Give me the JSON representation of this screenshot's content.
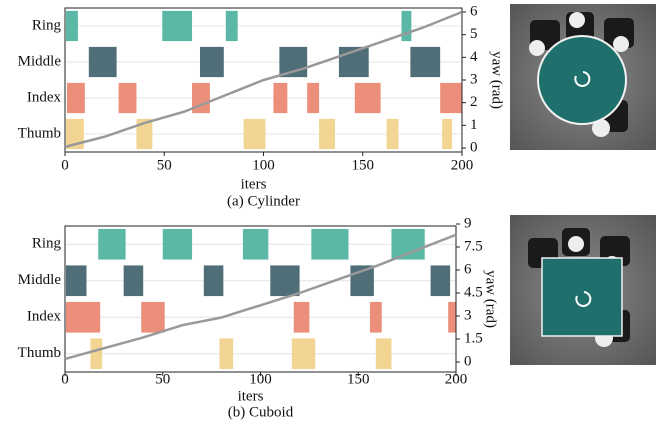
{
  "chart_data": [
    {
      "type": "gait",
      "caption": "(a)  Cylinder",
      "xlabel": "iters",
      "y2label": "yaw (rad)",
      "xlim": [
        0,
        200
      ],
      "xticks": [
        0,
        50,
        100,
        150,
        200
      ],
      "y2lim": [
        0,
        6
      ],
      "y2ticks": [
        0,
        1,
        2,
        3,
        4,
        5,
        6
      ],
      "series": [
        {
          "name": "Ring",
          "color": "#5cb8a6",
          "intervals": [
            [
              0.5,
              6.5
            ],
            [
              49,
              64
            ],
            [
              81,
              87
            ],
            [
              169.5,
              174.5
            ]
          ]
        },
        {
          "name": "Middle",
          "color": "#4f6e78",
          "intervals": [
            [
              12,
              26
            ],
            [
              68,
              80
            ],
            [
              108,
              122
            ],
            [
              138,
              153
            ],
            [
              174,
              189
            ]
          ]
        },
        {
          "name": "Index",
          "color": "#ec8f7a",
          "intervals": [
            [
              1,
              10
            ],
            [
              27,
              36
            ],
            [
              64,
              73
            ],
            [
              105,
              112
            ],
            [
              122,
              128
            ],
            [
              146,
              159
            ],
            [
              189,
              200
            ]
          ]
        },
        {
          "name": "Thumb",
          "color": "#f2d493",
          "intervals": [
            [
              0.5,
              9.5
            ],
            [
              36,
              44
            ],
            [
              90,
              101
            ],
            [
              128,
              136
            ],
            [
              162,
              168
            ],
            [
              190,
              195
            ]
          ]
        }
      ],
      "yaw": {
        "axis": "y2",
        "color": "#999999",
        "x": [
          0,
          20,
          40,
          60,
          80,
          100,
          120,
          140,
          160,
          180,
          200
        ],
        "values": [
          0.05,
          0.5,
          1.1,
          1.6,
          2.3,
          3.0,
          3.5,
          4.1,
          4.7,
          5.3,
          6.0
        ]
      }
    },
    {
      "type": "gait",
      "caption": "(b)  Cuboid",
      "xlabel": "iters",
      "y2label": "yaw (rad)",
      "xlim": [
        0,
        200
      ],
      "xticks": [
        0,
        50,
        100,
        150,
        200
      ],
      "y2lim": [
        0,
        9
      ],
      "y2ticks": [
        0,
        1.5,
        3,
        4.5,
        6,
        7.5,
        9
      ],
      "series": [
        {
          "name": "Ring",
          "color": "#5cb8a6",
          "intervals": [
            [
              17,
              31
            ],
            [
              50,
              65
            ],
            [
              91,
              104
            ],
            [
              126,
              145
            ],
            [
              167,
              184
            ]
          ]
        },
        {
          "name": "Middle",
          "color": "#4f6e78",
          "intervals": [
            [
              0.5,
              11
            ],
            [
              30,
              40
            ],
            [
              71,
              81
            ],
            [
              105,
              120
            ],
            [
              146,
              158
            ],
            [
              187,
              197
            ]
          ]
        },
        {
          "name": "Index",
          "color": "#ec8f7a",
          "intervals": [
            [
              0.5,
              18
            ],
            [
              39,
              51
            ],
            [
              117,
              125
            ],
            [
              156,
              162
            ],
            [
              196,
              200
            ]
          ]
        },
        {
          "name": "Thumb",
          "color": "#f2d493",
          "intervals": [
            [
              13,
              19
            ],
            [
              79,
              86
            ],
            [
              116,
              128
            ],
            [
              159,
              167
            ]
          ]
        }
      ],
      "yaw": {
        "axis": "y2",
        "color": "#999999",
        "x": [
          0,
          20,
          40,
          60,
          80,
          100,
          120,
          140,
          160,
          180,
          200
        ],
        "values": [
          0.2,
          0.9,
          1.6,
          2.4,
          2.9,
          3.7,
          4.5,
          5.4,
          6.3,
          7.3,
          8.3
        ]
      }
    }
  ]
}
